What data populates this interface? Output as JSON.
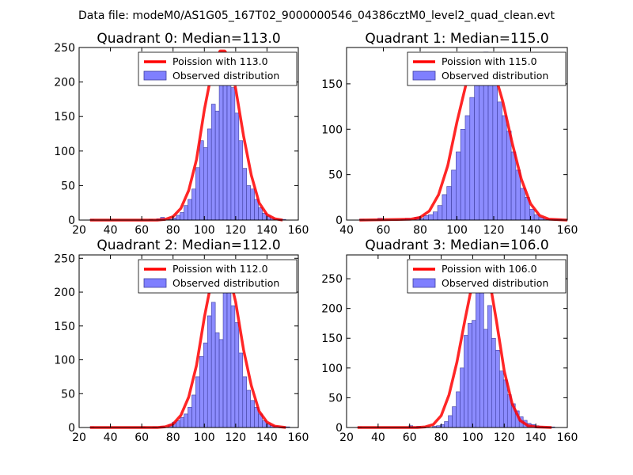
{
  "suptitle": "Data file: modeM0/AS1G05_167T02_9000000546_04386cztM0_level2_quad_clean.evt",
  "colors": {
    "poisson_line": "#ff0000",
    "bar_fill": "#7f7fff",
    "bar_edge": "#3f3f9f",
    "axes": "#000000",
    "background": "#ffffff"
  },
  "chart_data": [
    {
      "type": "bar",
      "title": "Quadrant 0: Median=113.0",
      "legend_position": "top-right",
      "legend": [
        "Poission with 113.0",
        "Observed distribution"
      ],
      "xlim": [
        20,
        160
      ],
      "ylim": [
        0,
        250
      ],
      "xticks": [
        20,
        40,
        60,
        80,
        100,
        120,
        140,
        160
      ],
      "yticks": [
        0,
        50,
        100,
        150,
        200,
        250
      ],
      "bin_width": 2.5,
      "observed": {
        "bin_starts": [
          27,
          64.5,
          69.5,
          72,
          77,
          79.5,
          82,
          84.5,
          87,
          89.5,
          92,
          94.5,
          97,
          99.5,
          102,
          104.5,
          107,
          109.5,
          112,
          114.5,
          117,
          119.5,
          122,
          124.5,
          127,
          129.5,
          132,
          134.5,
          137,
          139.5,
          142,
          144.5,
          147,
          149.5
        ],
        "values": [
          1,
          1,
          2,
          4,
          1,
          3,
          7,
          11,
          21,
          30,
          45,
          76,
          115,
          105,
          132,
          168,
          158,
          235,
          200,
          223,
          192,
          155,
          115,
          75,
          50,
          45,
          30,
          18,
          10,
          6,
          3,
          1,
          1,
          1
        ]
      },
      "poisson": {
        "mean": 113.0,
        "x": [
          27,
          70,
          75,
          80,
          85,
          90,
          95,
          100,
          105,
          110,
          113,
          116,
          120,
          125,
          130,
          135,
          140,
          145,
          150
        ],
        "y": [
          0,
          0,
          1,
          5,
          17,
          43,
          88,
          160,
          218,
          245,
          245,
          235,
          190,
          122,
          65,
          25,
          8,
          2,
          0
        ]
      }
    },
    {
      "type": "bar",
      "title": "Quadrant 1: Median=115.0",
      "legend_position": "top-right",
      "legend": [
        "Poission with 115.0",
        "Observed distribution"
      ],
      "xlim": [
        40,
        160
      ],
      "ylim": [
        0,
        190
      ],
      "xticks": [
        40,
        60,
        80,
        100,
        120,
        140,
        160
      ],
      "yticks": [
        0,
        50,
        100,
        150
      ],
      "bin_width": 2.5,
      "observed": {
        "bin_starts": [
          47,
          57,
          69.5,
          72,
          77,
          79.5,
          82,
          84.5,
          87,
          89.5,
          92,
          94.5,
          97,
          99.5,
          102,
          104.5,
          107,
          109.5,
          112,
          114.5,
          117,
          119.5,
          122,
          124.5,
          127,
          129.5,
          132,
          134.5,
          137,
          139.5,
          142,
          144.5,
          147,
          149.5,
          152,
          154.5
        ],
        "values": [
          1,
          2,
          1,
          2,
          3,
          2,
          5,
          6,
          9,
          16,
          28,
          37,
          55,
          75,
          100,
          115,
          135,
          148,
          160,
          185,
          170,
          152,
          130,
          115,
          98,
          75,
          55,
          35,
          25,
          12,
          6,
          3,
          1,
          1,
          1,
          1
        ]
      },
      "poisson": {
        "mean": 115.0,
        "x": [
          47,
          75,
          80,
          85,
          90,
          95,
          100,
          105,
          110,
          115,
          120,
          125,
          130,
          135,
          140,
          145,
          150,
          160
        ],
        "y": [
          0,
          1,
          3,
          10,
          28,
          60,
          108,
          150,
          172,
          178,
          165,
          130,
          85,
          45,
          18,
          5,
          1,
          0
        ]
      }
    },
    {
      "type": "bar",
      "title": "Quadrant 2: Median=112.0",
      "legend_position": "top-right",
      "legend": [
        "Poission with 112.0",
        "Observed distribution"
      ],
      "xlim": [
        20,
        160
      ],
      "ylim": [
        0,
        255
      ],
      "xticks": [
        20,
        40,
        60,
        80,
        100,
        120,
        140,
        160
      ],
      "yticks": [
        0,
        50,
        100,
        150,
        200,
        250
      ],
      "bin_width": 2.5,
      "observed": {
        "bin_starts": [
          27,
          59.5,
          67,
          72,
          77,
          79.5,
          82,
          84.5,
          87,
          89.5,
          92,
          94.5,
          97,
          99.5,
          102,
          104.5,
          107,
          109.5,
          112,
          114.5,
          117,
          119.5,
          122,
          124.5,
          127,
          129.5,
          132,
          134.5,
          137,
          139.5,
          142,
          144.5,
          147,
          149.5,
          152
        ],
        "values": [
          1,
          1,
          1,
          2,
          4,
          8,
          10,
          15,
          20,
          30,
          48,
          75,
          105,
          125,
          165,
          185,
          140,
          130,
          200,
          200,
          180,
          155,
          110,
          75,
          55,
          40,
          30,
          20,
          10,
          5,
          3,
          2,
          1,
          1,
          1
        ]
      },
      "poisson": {
        "mean": 112.0,
        "x": [
          27,
          70,
          75,
          80,
          85,
          90,
          95,
          100,
          105,
          110,
          112,
          115,
          120,
          125,
          130,
          135,
          140,
          145,
          152
        ],
        "y": [
          0,
          0,
          1,
          5,
          18,
          45,
          92,
          163,
          222,
          240,
          242,
          234,
          185,
          115,
          62,
          24,
          8,
          2,
          0
        ]
      }
    },
    {
      "type": "bar",
      "title": "Quadrant 3: Median=106.0",
      "legend_position": "top-right",
      "legend": [
        "Poission with 106.0",
        "Observed distribution"
      ],
      "xlim": [
        20,
        160
      ],
      "ylim": [
        0,
        290
      ],
      "xticks": [
        20,
        40,
        60,
        80,
        100,
        120,
        140,
        160
      ],
      "yticks": [
        0,
        50,
        100,
        150,
        200,
        250
      ],
      "bin_width": 2.5,
      "observed": {
        "bin_starts": [
          27,
          59.5,
          64.5,
          69.5,
          74.5,
          77,
          79.5,
          82,
          84.5,
          87,
          89.5,
          92,
          94.5,
          97,
          99.5,
          102,
          104.5,
          107,
          109.5,
          112,
          114.5,
          117,
          119.5,
          122,
          124.5,
          127,
          129.5,
          132,
          134.5,
          137,
          139.5,
          142,
          144.5,
          147,
          149.5
        ],
        "values": [
          1,
          3,
          2,
          1,
          2,
          3,
          5,
          10,
          20,
          35,
          60,
          100,
          155,
          175,
          180,
          250,
          250,
          165,
          205,
          150,
          130,
          95,
          80,
          55,
          40,
          28,
          18,
          12,
          7,
          5,
          3,
          2,
          1,
          1,
          1
        ]
      },
      "poisson": {
        "mean": 106.0,
        "x": [
          27,
          65,
          70,
          75,
          80,
          85,
          90,
          95,
          100,
          105,
          106,
          110,
          115,
          120,
          125,
          130,
          135,
          140,
          150
        ],
        "y": [
          0,
          0,
          1,
          5,
          20,
          55,
          110,
          180,
          245,
          272,
          272,
          258,
          180,
          95,
          40,
          12,
          3,
          1,
          0
        ]
      }
    }
  ]
}
